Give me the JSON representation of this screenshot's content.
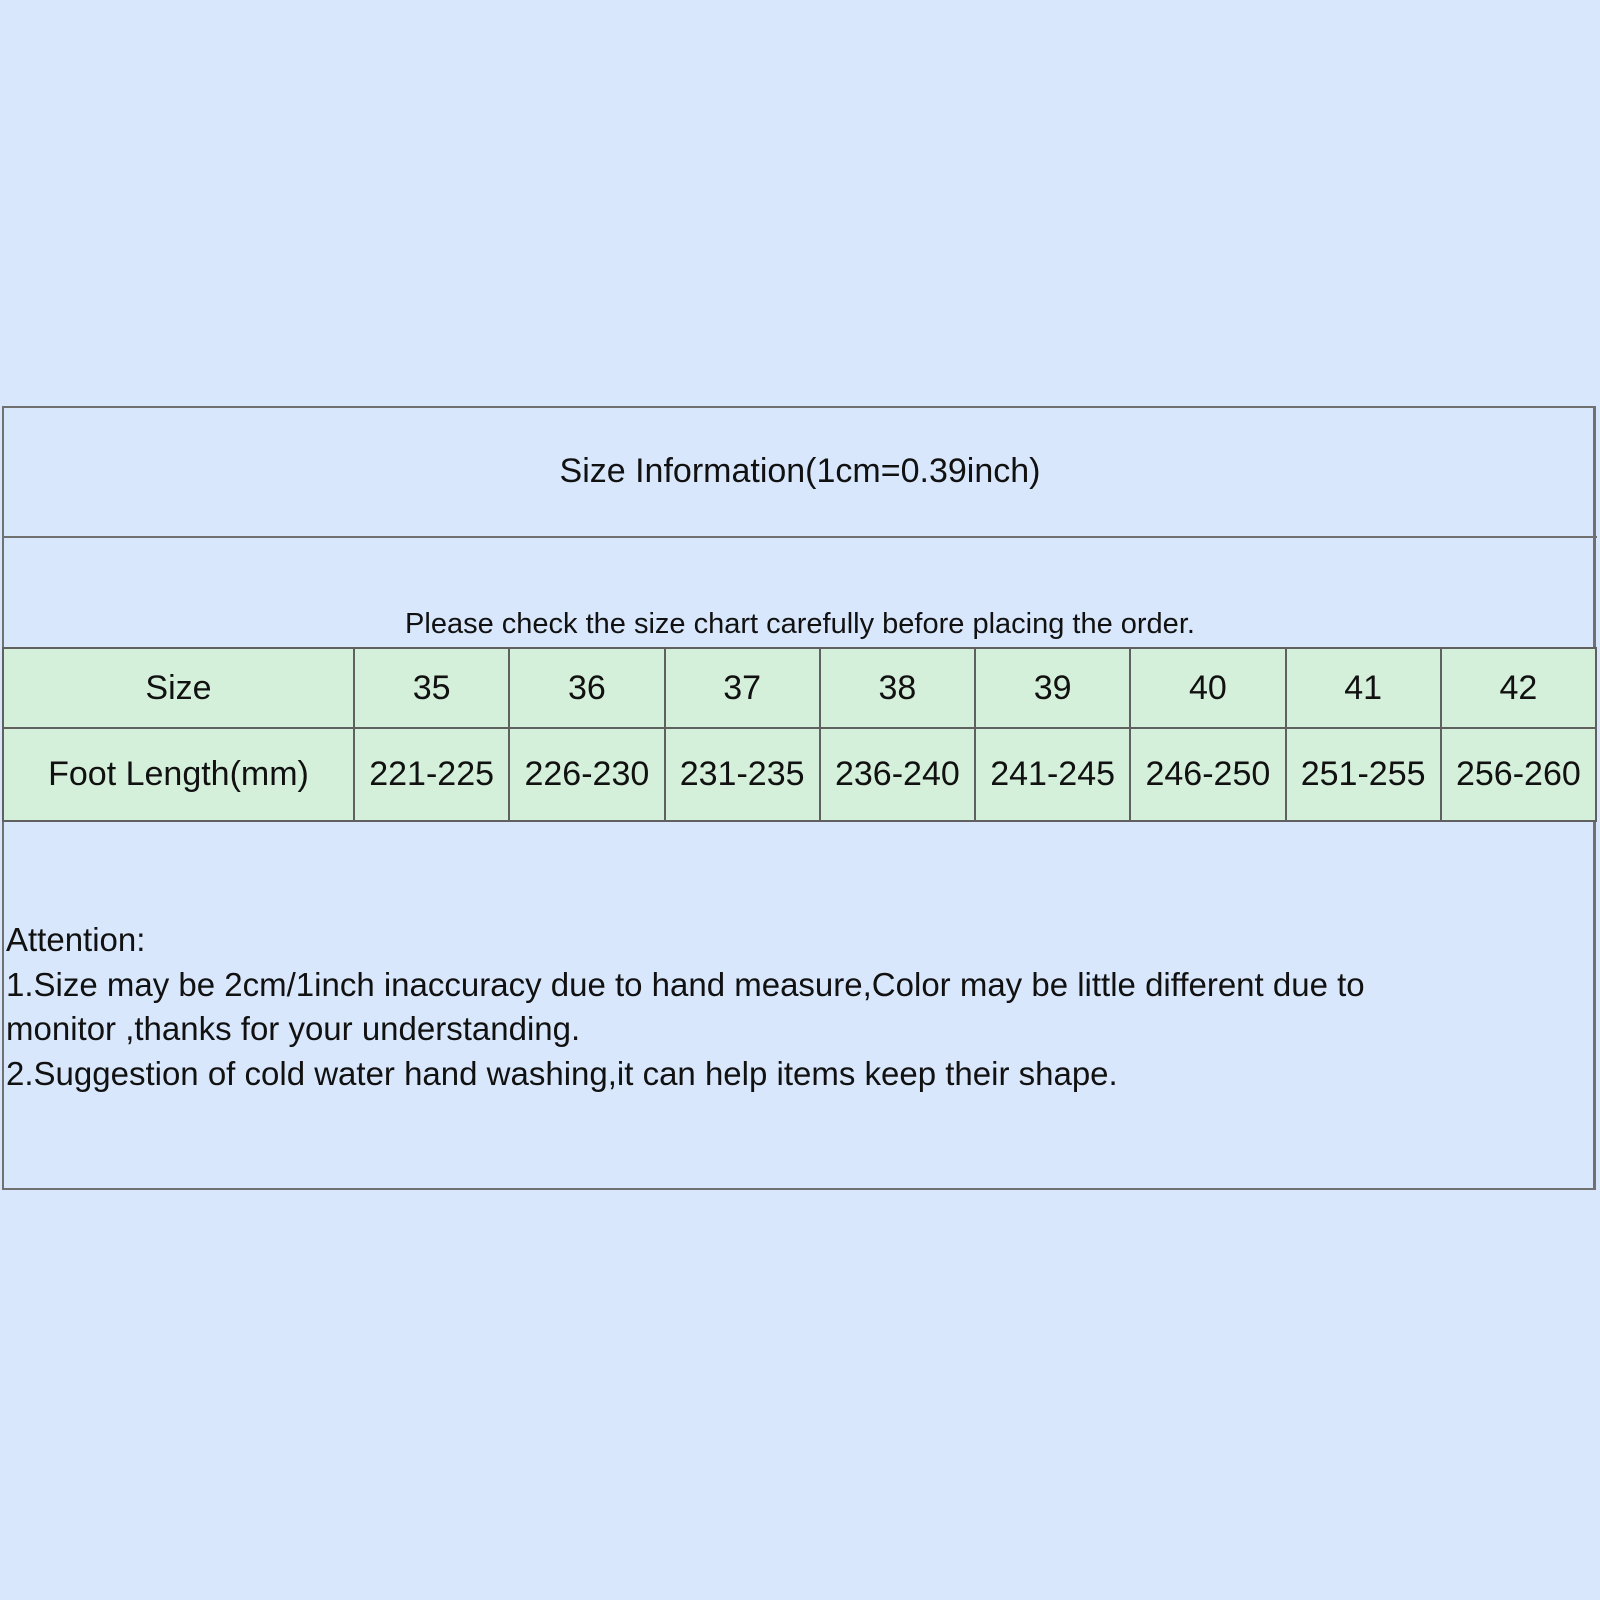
{
  "title": "Size Information(1cm=0.39inch)",
  "subtitle": "Please check the size chart carefully before placing the order.",
  "table": {
    "row_headers": [
      "Size",
      "Foot Length(mm)"
    ],
    "sizes": [
      "35",
      "36",
      "37",
      "38",
      "39",
      "40",
      "41",
      "42"
    ],
    "foot_length": [
      "221-225",
      "226-230",
      "231-235",
      "236-240",
      "241-245",
      "246-250",
      "251-255",
      "256-260"
    ]
  },
  "attention": {
    "heading": "Attention:",
    "lines": [
      "1.Size may be 2cm/1inch inaccuracy due to hand measure,Color may be little different due to",
      "monitor ,thanks for your understanding.",
      "2.Suggestion of cold water hand washing,it can help items keep their shape."
    ]
  },
  "colors": {
    "background": "#d8e7fb",
    "table_fill": "#d4f0da",
    "border": "#707070"
  }
}
